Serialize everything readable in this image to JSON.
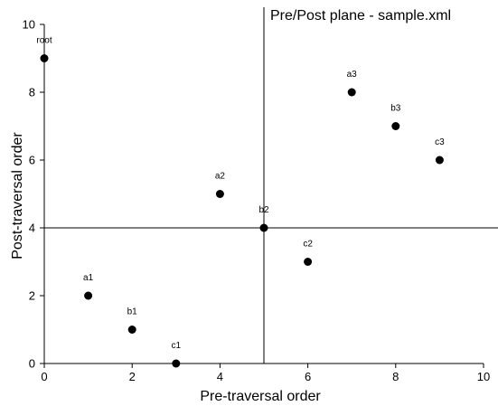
{
  "chart_data": {
    "type": "scatter",
    "title": "Pre/Post plane - sample.xml",
    "xlabel": "Pre-traversal order",
    "ylabel": "Post-traversal order",
    "xlim": [
      0,
      10
    ],
    "ylim": [
      0,
      10
    ],
    "xticks": [
      0,
      2,
      4,
      6,
      8,
      10
    ],
    "yticks": [
      0,
      2,
      4,
      6,
      8,
      10
    ],
    "reference_lines": {
      "x": 5,
      "y": 4
    },
    "grid": false,
    "marker_color": "#000000",
    "points": [
      {
        "label": "root",
        "x": 0,
        "y": 9
      },
      {
        "label": "a1",
        "x": 1,
        "y": 2
      },
      {
        "label": "b1",
        "x": 2,
        "y": 1
      },
      {
        "label": "c1",
        "x": 3,
        "y": 0
      },
      {
        "label": "a2",
        "x": 4,
        "y": 5
      },
      {
        "label": "b2",
        "x": 5,
        "y": 4
      },
      {
        "label": "c2",
        "x": 6,
        "y": 3
      },
      {
        "label": "a3",
        "x": 7,
        "y": 8
      },
      {
        "label": "b3",
        "x": 8,
        "y": 7
      },
      {
        "label": "c3",
        "x": 9,
        "y": 6
      }
    ]
  }
}
